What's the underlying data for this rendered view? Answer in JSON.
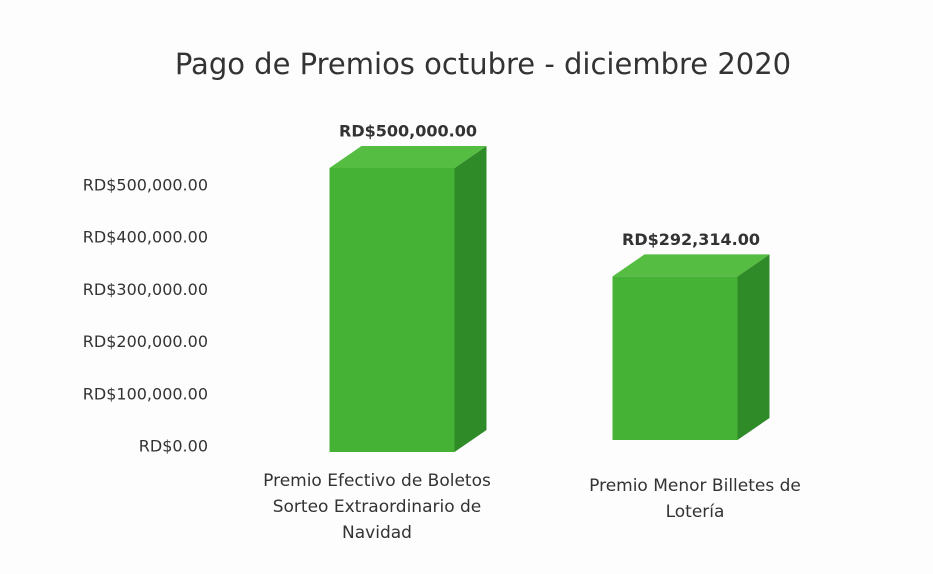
{
  "chart_data": {
    "type": "bar3d",
    "title": "Pago de Premios octubre - diciembre 2020",
    "categories": [
      "Premio Efectivo de Boletos Sorteo Extraordinario de Navidad",
      "Premio Menor Billetes de Lotería"
    ],
    "values": [
      500000,
      292314
    ],
    "value_labels": [
      "RD$500,000.00",
      "RD$292,314.00"
    ],
    "color": "#45b236",
    "ylim": [
      0,
      500000
    ],
    "yticks": [
      {
        "value": 0,
        "label": "RD$0.00"
      },
      {
        "value": 100000,
        "label": "RD$100,000.00"
      },
      {
        "value": 200000,
        "label": "RD$200,000.00"
      },
      {
        "value": 300000,
        "label": "RD$300,000.00"
      },
      {
        "value": 400000,
        "label": "RD$400,000.00"
      },
      {
        "value": 500000,
        "label": "RD$500,000.00"
      }
    ],
    "grid": false
  }
}
